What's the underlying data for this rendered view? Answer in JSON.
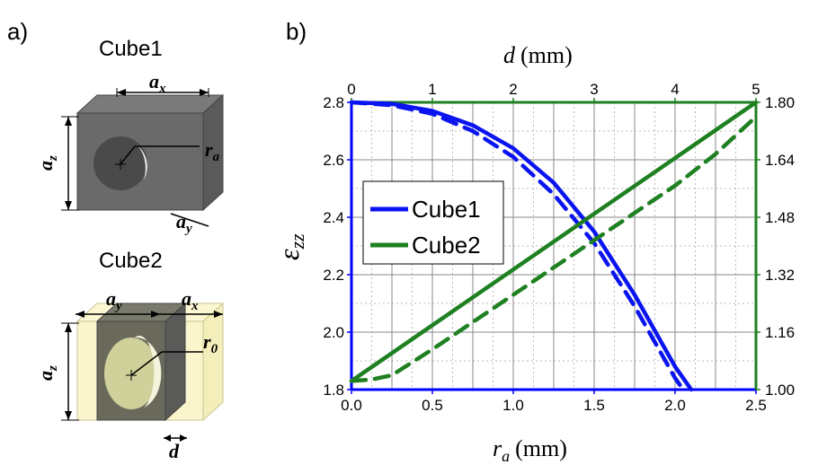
{
  "panel_a": {
    "label": "a)",
    "cube1": {
      "title": "Cube1",
      "ax": "a",
      "ax_sub": "x",
      "ay": "a",
      "ay_sub": "y",
      "az": "a",
      "az_sub": "z",
      "r": "r",
      "r_sub": "a"
    },
    "cube2": {
      "title": "Cube2",
      "ay": "a",
      "ay_sub": "y",
      "ax": "a",
      "ax_sub": "x",
      "az": "a",
      "az_sub": "z",
      "r": "r",
      "r_sub": "0",
      "d": "d"
    }
  },
  "panel_b": {
    "label": "b)",
    "top_axis_title": "d",
    "top_axis_unit": "(mm)",
    "bottom_axis_title": "r",
    "bottom_axis_sub": "a",
    "bottom_axis_unit": "(mm)",
    "left_axis_title": "ε",
    "left_axis_sub": "zz"
  },
  "colors": {
    "blue": "#0a14f0",
    "green": "#1e8020",
    "grid": "#888888",
    "frame_blue": "#0000ff",
    "frame_green": "#1e8020"
  },
  "chart_data": {
    "type": "line",
    "legend_position": "center-left",
    "grid": true,
    "x_bottom": {
      "label": "r_a (mm)",
      "lim": [
        0.0,
        2.5
      ],
      "ticks": [
        "0.0",
        "0.5",
        "1.0",
        "1.5",
        "2.0",
        "2.5"
      ]
    },
    "x_top": {
      "label": "d (mm)",
      "lim": [
        0,
        5
      ],
      "ticks": [
        "0",
        "1",
        "2",
        "3",
        "4",
        "5"
      ]
    },
    "y_left": {
      "label": "ε_zz",
      "lim": [
        1.8,
        2.8
      ],
      "ticks": [
        "1.8",
        "2.0",
        "2.2",
        "2.4",
        "2.6",
        "2.8"
      ]
    },
    "y_right": {
      "lim": [
        1.0,
        1.8
      ],
      "ticks": [
        "1.00",
        "1.16",
        "1.32",
        "1.48",
        "1.64",
        "1.80"
      ]
    },
    "legend": [
      "Cube1",
      "Cube2"
    ],
    "series": [
      {
        "name": "Cube1",
        "axis": "bottom-left",
        "style": "solid",
        "color": "#0a14f0",
        "x": [
          0.0,
          0.25,
          0.5,
          0.75,
          1.0,
          1.25,
          1.5,
          1.75,
          2.0,
          2.1
        ],
        "y": [
          2.8,
          2.795,
          2.77,
          2.72,
          2.64,
          2.52,
          2.35,
          2.13,
          1.88,
          1.8
        ]
      },
      {
        "name": "Cube1",
        "axis": "bottom-left",
        "style": "dashed",
        "color": "#0a14f0",
        "x": [
          0.0,
          0.25,
          0.5,
          0.75,
          1.0,
          1.25,
          1.5,
          1.75,
          2.0,
          2.05
        ],
        "y": [
          2.8,
          2.79,
          2.76,
          2.7,
          2.61,
          2.48,
          2.31,
          2.09,
          1.84,
          1.8
        ]
      },
      {
        "name": "Cube2",
        "axis": "top-left",
        "style": "solid",
        "color": "#1e8020",
        "x": [
          0.0,
          5.0
        ],
        "y": [
          1.83,
          2.8
        ]
      },
      {
        "name": "Cube2",
        "axis": "top-left",
        "style": "dashed",
        "color": "#1e8020",
        "x": [
          0.0,
          0.25,
          0.5,
          1.0,
          2.0,
          3.0,
          4.0,
          4.5,
          5.0
        ],
        "y": [
          1.83,
          1.835,
          1.85,
          1.94,
          2.13,
          2.32,
          2.51,
          2.62,
          2.75
        ]
      }
    ]
  }
}
